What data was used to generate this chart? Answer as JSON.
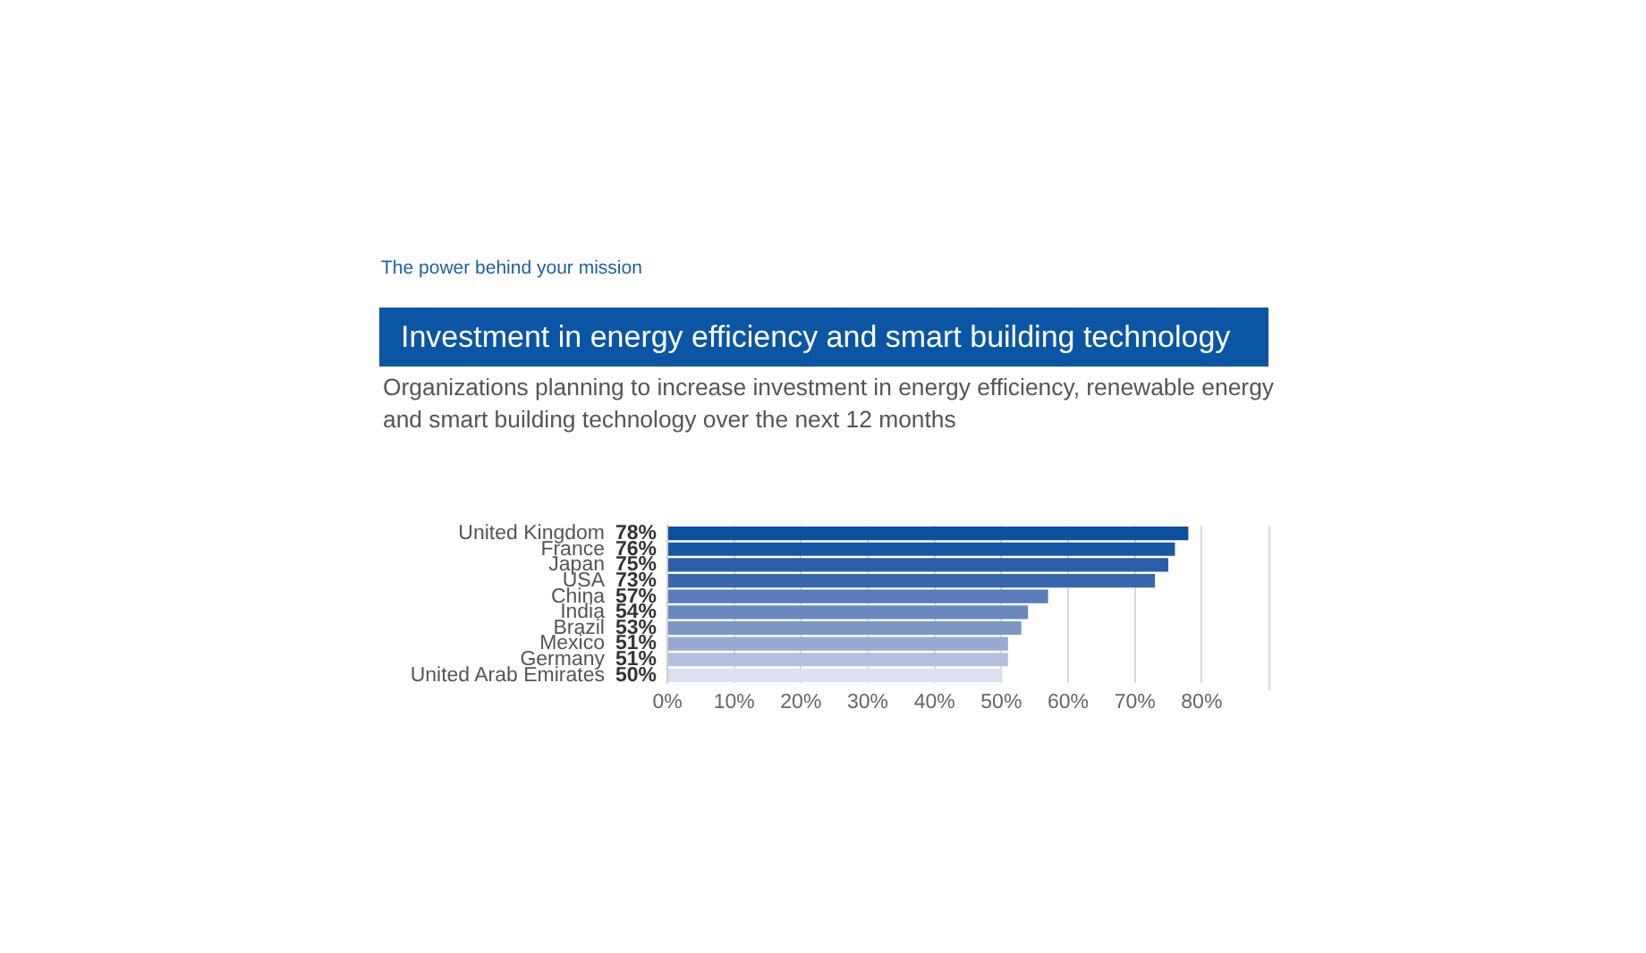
{
  "chart_data": {
    "type": "bar",
    "orientation": "horizontal",
    "title": "Investment in energy efficiency and smart building technology",
    "subtitle": "Organizations planning to increase investment in energy efficiency, renewable energy and smart building technology over the next 12 months",
    "annotations": [
      "The power behind your mission"
    ],
    "categories": [
      "United Kingdom",
      "France",
      "Japan",
      "USA",
      "China",
      "India",
      "Brazil",
      "Mexico",
      "Germany",
      "United Arab Emirates"
    ],
    "values": [
      78,
      76,
      75,
      73,
      57,
      54,
      53,
      51,
      51,
      50
    ],
    "colors": [
      "#0b4f9e",
      "#1b57a4",
      "#2a5ea8",
      "#3a66ad",
      "#5a7bb9",
      "#6a87c0",
      "#7c96c8",
      "#98aad4",
      "#b3c1e0",
      "#dbe1f0"
    ],
    "value_labels": [
      "78%",
      "76%",
      "75%",
      "73%",
      "57%",
      "54%",
      "53%",
      "51%",
      "51%",
      "50%"
    ],
    "xlim": [
      0,
      90
    ],
    "xticks": [
      {
        "value": 0,
        "label": "0%"
      },
      {
        "value": 10,
        "label": "10%"
      },
      {
        "value": 20,
        "label": "20%"
      },
      {
        "value": 30,
        "label": "30%"
      },
      {
        "value": 40,
        "label": "40%"
      },
      {
        "value": 50,
        "label": "50%"
      },
      {
        "value": 60,
        "label": "60%"
      },
      {
        "value": 70,
        "label": "70%"
      },
      {
        "value": 80,
        "label": "80%"
      }
    ],
    "grid": "x"
  }
}
